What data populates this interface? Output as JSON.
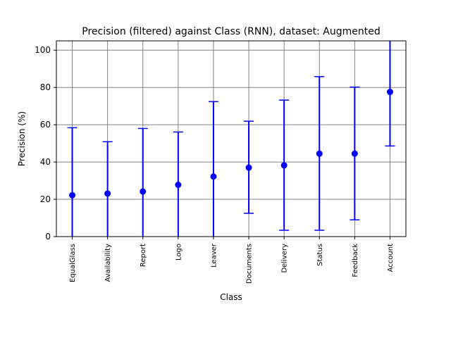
{
  "chart_data": {
    "type": "scatter",
    "title": "Precision (filtered) against Class (RNN), dataset: Augmented",
    "xlabel": "Class",
    "ylabel": "Precision (%)",
    "ylim": [
      0,
      105
    ],
    "yticks": [
      0,
      20,
      40,
      60,
      80,
      100
    ],
    "grid": true,
    "error_bars": true,
    "series_color": "#0000ff",
    "grid_color": "#808080",
    "categories": [
      "EqualGlass",
      "Availability",
      "Report",
      "Logo",
      "Leaver",
      "Documents",
      "Delivery",
      "Status",
      "Feedback",
      "Account"
    ],
    "values": [
      22.2,
      23.1,
      24.2,
      27.8,
      32.2,
      37.0,
      38.2,
      44.5,
      44.5,
      77.6
    ],
    "lower": [
      0,
      0,
      0,
      0,
      0,
      12.5,
      3.4,
      3.4,
      9.0,
      48.6
    ],
    "upper": [
      58.4,
      50.9,
      58.0,
      56.1,
      72.4,
      61.9,
      73.2,
      85.8,
      80.2,
      106
    ]
  }
}
